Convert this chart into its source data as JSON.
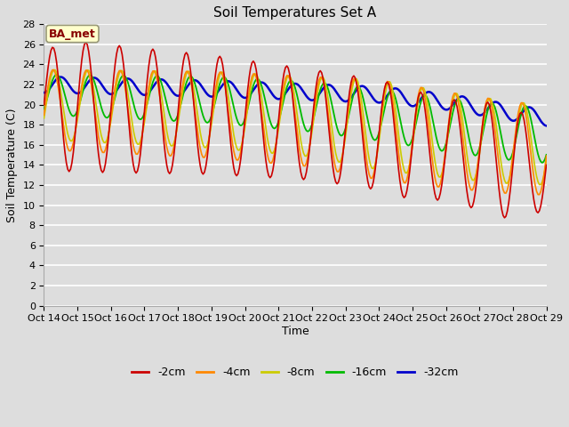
{
  "title": "Soil Temperatures Set A",
  "ylabel": "Soil Temperature (C)",
  "xlabel": "Time",
  "x_tick_labels": [
    "Oct 14",
    "Oct 15",
    "Oct 16",
    "Oct 17",
    "Oct 18",
    "Oct 19",
    "Oct 20",
    "Oct 21",
    "Oct 22",
    "Oct 23",
    "Oct 24",
    "Oct 25",
    "Oct 26",
    "Oct 27",
    "Oct 28",
    "Oct 29"
  ],
  "ylim": [
    0,
    28
  ],
  "series_colors": [
    "#cc0000",
    "#ff8800",
    "#cccc00",
    "#00bb00",
    "#0000cc"
  ],
  "series_labels": [
    "-2cm",
    "-4cm",
    "-8cm",
    "-16cm",
    "-32cm"
  ],
  "annotation_text": "BA_met",
  "annotation_box_color": "#ffffcc",
  "annotation_text_color": "#880000",
  "bg_color": "#dddddd",
  "grid_color": "#ffffff",
  "title_fontsize": 11,
  "label_fontsize": 9,
  "tick_fontsize": 8
}
